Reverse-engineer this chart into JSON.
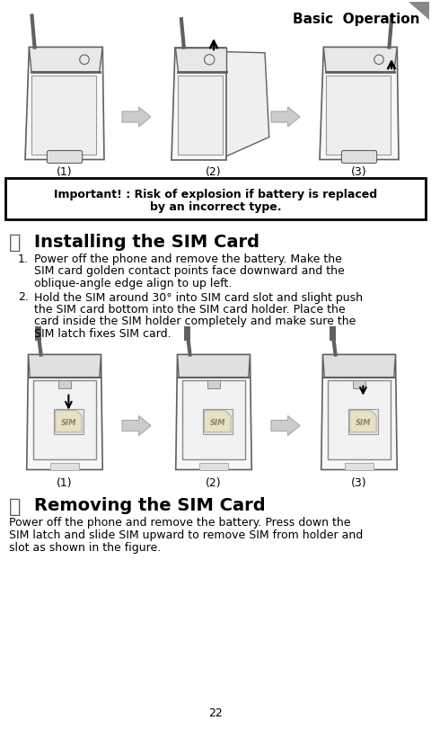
{
  "title": "Basic  Operation",
  "page_number": "22",
  "bg": "#ffffff",
  "fg": "#000000",
  "warning_line1": "Important! : Risk of explosion if battery is replaced",
  "warning_line2": "by an incorrect type.",
  "sec1_title": "Installing the SIM Card",
  "sec1_p1_lines": [
    "Power off the phone and remove the battery. Make the",
    "SIM card golden contact points face downward and the",
    "oblique-angle edge align to up left."
  ],
  "sec1_p2_lines": [
    "Hold the SIM around 30° into SIM card slot and slight push",
    "the SIM card bottom into the SIM card holder. Place the",
    "card inside the SIM holder completely and make sure the",
    "SIM latch fixes SIM card."
  ],
  "labels": [
    "(1)",
    "(2)",
    "(3)"
  ],
  "sec2_title": "Removing the SIM Card",
  "sec2_lines": [
    "Power off the phone and remove the battery. Press down the",
    "SIM latch and slide SIM upward to remove SIM from holder and",
    "slot as shown in the figure."
  ],
  "arrow_color": "#b0b0b0",
  "phone_outline": "#606060",
  "phone_fill": "#f8f8f8",
  "phone_inner": "#eeeeee"
}
